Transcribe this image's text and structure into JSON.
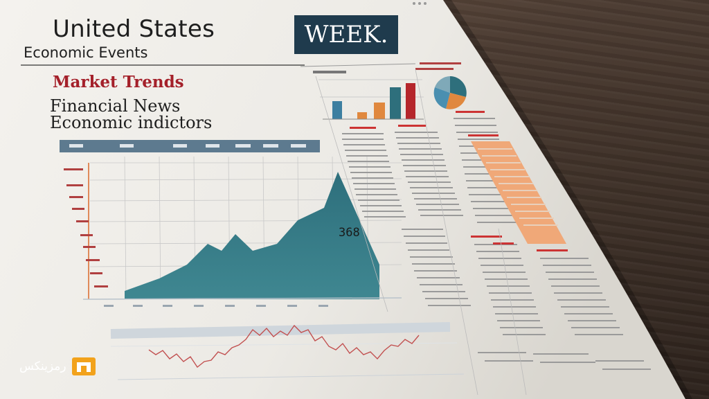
{
  "newspaper": {
    "title": "United States",
    "subtitle": "Economic  Events",
    "badge": "WEEK.",
    "section_heading": "Market Trends",
    "line1": "Financial News",
    "line2": "Economic indictors",
    "chart_value_label": "368"
  },
  "logo": {
    "text": "رمزینکس",
    "accent_color": "#f2a21b"
  },
  "colors": {
    "teal": "#2e6f7c",
    "header_bar": "#5d7a8f",
    "accent_red": "#a4202a",
    "accent_orange": "#e8894d"
  }
}
